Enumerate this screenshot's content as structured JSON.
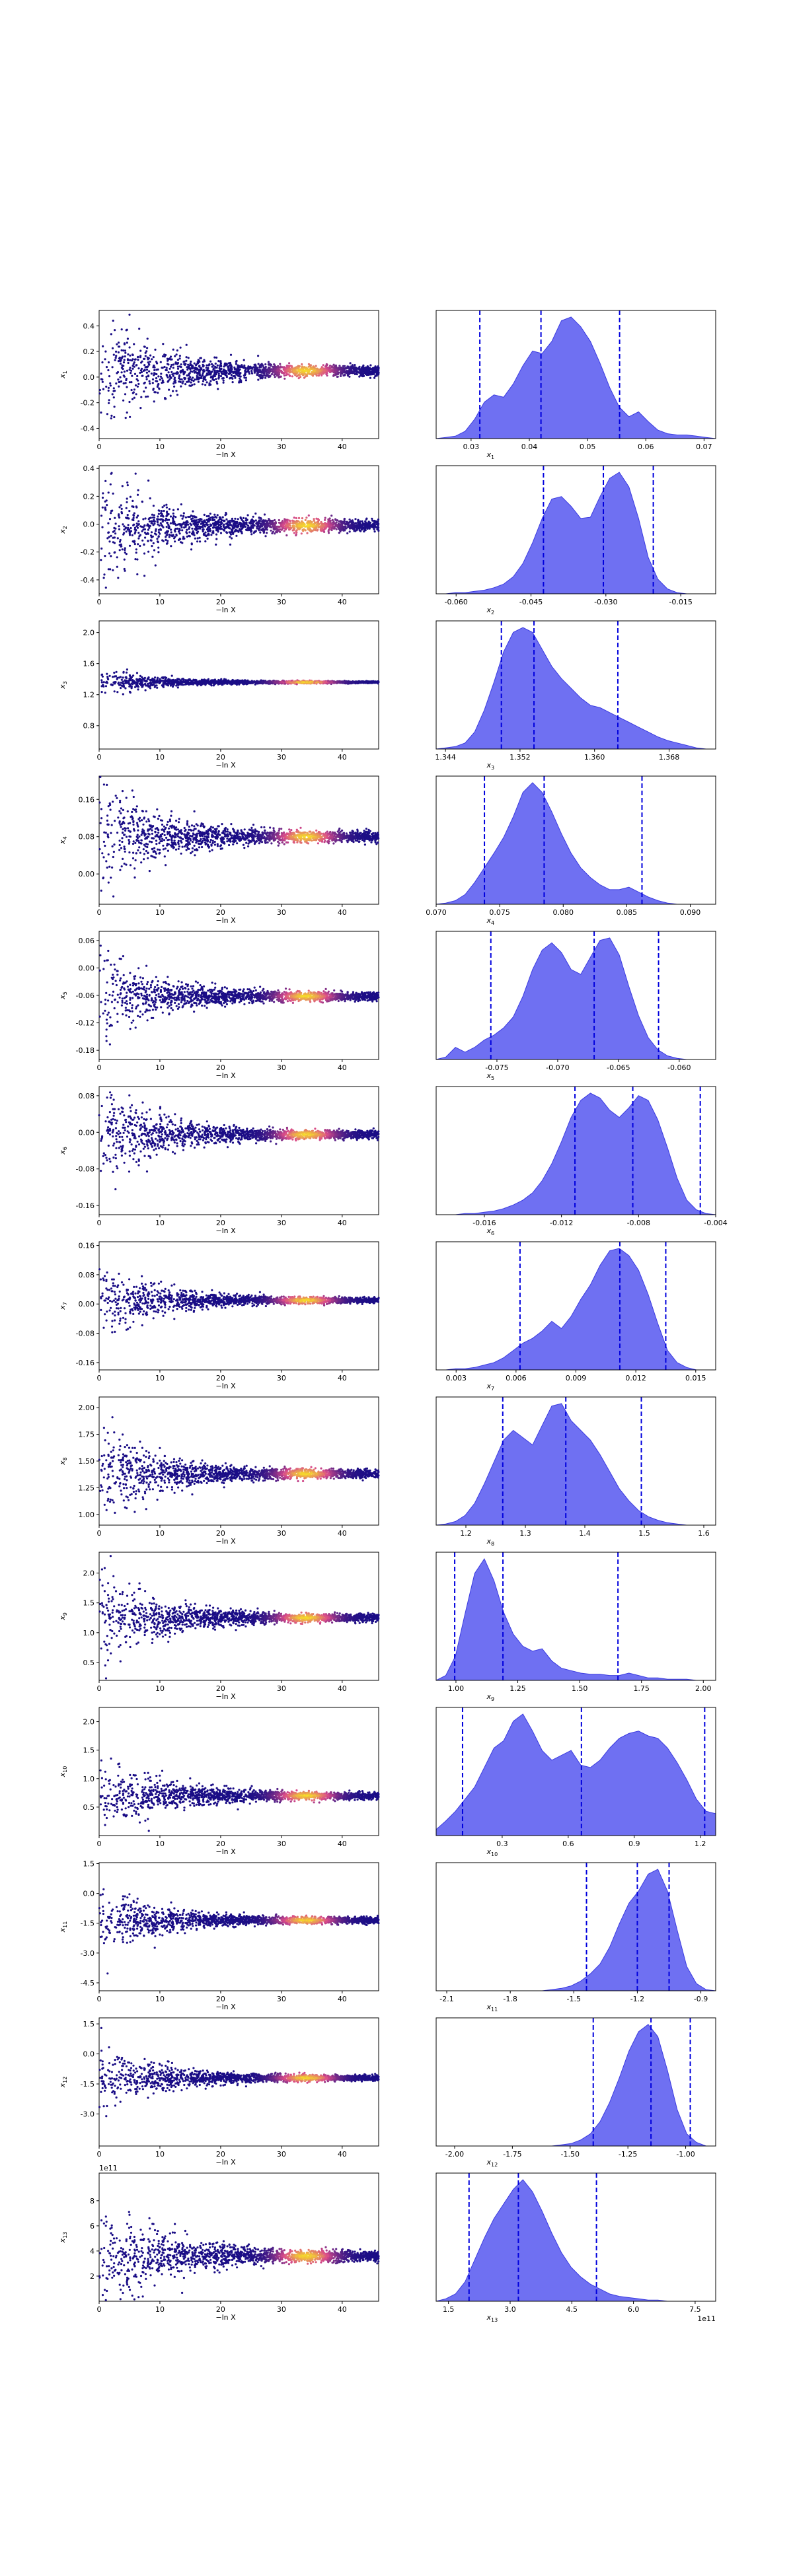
{
  "colors": {
    "background": "#ffffff",
    "axis": "#000000",
    "kde_fill": "#5b5cf0",
    "kde_edge": "#3a3ae0",
    "quantile_line": "#0000dd",
    "scatter_low": "#1a0d86",
    "scatter_mid": "#d94b8a",
    "scatter_high": "#f7e225"
  },
  "icons": {
    "figure": "trace-plot-icon"
  },
  "chart_data": [
    {
      "type": "scatter",
      "param": "x_1",
      "ylabel": "x",
      "sub": "1",
      "xlabel": "−ln X",
      "xlim": [
        0,
        46
      ],
      "xticks": [
        "0",
        "10",
        "20",
        "30",
        "40"
      ],
      "ylim": [
        -0.48,
        0.52
      ],
      "yticks": [
        "-0.4",
        "-0.2",
        "0.0",
        "0.2",
        "0.4"
      ],
      "spread": 0.23,
      "center": 0.05,
      "seed": 11,
      "hist": {
        "xlim": [
          0.024,
          0.072
        ],
        "xticks": [
          "0.03",
          "0.04",
          "0.05",
          "0.06",
          "0.07"
        ],
        "xlabel_var": "x",
        "xlabel_sub": "1",
        "quantiles": [
          0.0315,
          0.042,
          0.0555
        ],
        "density": [
          0.0,
          0.01,
          0.02,
          0.06,
          0.16,
          0.3,
          0.36,
          0.34,
          0.45,
          0.6,
          0.72,
          0.7,
          0.8,
          0.97,
          1.0,
          0.92,
          0.8,
          0.62,
          0.42,
          0.26,
          0.18,
          0.22,
          0.14,
          0.07,
          0.04,
          0.03,
          0.03,
          0.02,
          0.01,
          0.0
        ]
      }
    },
    {
      "type": "scatter",
      "param": "x_2",
      "ylabel": "x",
      "sub": "2",
      "xlabel": "−ln X",
      "xlim": [
        0,
        46
      ],
      "xticks": [
        "0",
        "10",
        "20",
        "30",
        "40"
      ],
      "ylim": [
        -0.5,
        0.42
      ],
      "yticks": [
        "-0.4",
        "-0.2",
        "0.0",
        "0.2",
        "0.4"
      ],
      "spread": 0.22,
      "center": -0.01,
      "seed": 23,
      "hist": {
        "xlim": [
          -0.064,
          -0.008
        ],
        "xticks": [
          "-0.060",
          "-0.045",
          "-0.030",
          "-0.015"
        ],
        "xlabel_var": "x",
        "xlabel_sub": "2",
        "quantiles": [
          -0.0425,
          -0.0305,
          -0.0205
        ],
        "density": [
          0.0,
          0.0,
          0.01,
          0.01,
          0.02,
          0.03,
          0.05,
          0.08,
          0.14,
          0.25,
          0.42,
          0.62,
          0.78,
          0.8,
          0.72,
          0.62,
          0.63,
          0.8,
          0.95,
          1.0,
          0.88,
          0.62,
          0.3,
          0.12,
          0.04,
          0.01,
          0.0,
          0.0,
          0.0,
          0.0
        ]
      }
    },
    {
      "type": "scatter",
      "param": "x_3",
      "ylabel": "x",
      "sub": "3",
      "xlabel": "−ln X",
      "xlim": [
        0,
        46
      ],
      "xticks": [
        "0",
        "10",
        "20",
        "30",
        "40"
      ],
      "ylim": [
        0.5,
        2.15
      ],
      "yticks": [
        "0.8",
        "1.2",
        "1.6",
        "2.0"
      ],
      "spread": 0.08,
      "center": 1.36,
      "seed": 37,
      "hist": {
        "xlim": [
          1.343,
          1.373
        ],
        "xticks": [
          "1.344",
          "1.352",
          "1.360",
          "1.368"
        ],
        "xlabel_var": "x",
        "xlabel_sub": "3",
        "quantiles": [
          1.35,
          1.3535,
          1.3625
        ],
        "density": [
          0.0,
          0.01,
          0.02,
          0.05,
          0.14,
          0.32,
          0.55,
          0.8,
          0.96,
          1.0,
          0.96,
          0.82,
          0.68,
          0.58,
          0.5,
          0.42,
          0.36,
          0.34,
          0.3,
          0.26,
          0.22,
          0.18,
          0.14,
          0.1,
          0.07,
          0.05,
          0.03,
          0.01,
          0.0,
          0.0
        ]
      }
    },
    {
      "type": "scatter",
      "param": "x_4",
      "ylabel": "x",
      "sub": "4",
      "xlabel": "−ln X",
      "xlim": [
        0,
        46
      ],
      "xticks": [
        "0",
        "10",
        "20",
        "30",
        "40"
      ],
      "ylim": [
        -0.065,
        0.21
      ],
      "yticks": [
        "0.00",
        "0.08",
        "0.16"
      ],
      "spread": 0.06,
      "center": 0.08,
      "seed": 41,
      "hist": {
        "xlim": [
          0.07,
          0.092
        ],
        "xticks": [
          "0.070",
          "0.075",
          "0.080",
          "0.085",
          "0.090"
        ],
        "xlabel_var": "x",
        "xlabel_sub": "4",
        "quantiles": [
          0.0738,
          0.0785,
          0.0862
        ],
        "density": [
          0.0,
          0.01,
          0.03,
          0.08,
          0.18,
          0.3,
          0.42,
          0.55,
          0.72,
          0.92,
          1.0,
          0.92,
          0.76,
          0.58,
          0.42,
          0.3,
          0.22,
          0.16,
          0.12,
          0.12,
          0.14,
          0.1,
          0.06,
          0.03,
          0.01,
          0.0,
          0.0,
          0.0,
          0.0,
          0.0
        ]
      }
    },
    {
      "type": "scatter",
      "param": "x_5",
      "ylabel": "x",
      "sub": "5",
      "xlabel": "−ln X",
      "xlim": [
        0,
        46
      ],
      "xticks": [
        "0",
        "10",
        "20",
        "30",
        "40"
      ],
      "ylim": [
        -0.2,
        0.08
      ],
      "yticks": [
        "-0.18",
        "-0.12",
        "-0.06",
        "0.00",
        "0.06"
      ],
      "spread": 0.05,
      "center": -0.062,
      "seed": 53,
      "hist": {
        "xlim": [
          -0.08,
          -0.057
        ],
        "xticks": [
          "-0.075",
          "-0.070",
          "-0.065",
          "-0.060"
        ],
        "xlabel_var": "x",
        "xlabel_sub": "5",
        "quantiles": [
          -0.0755,
          -0.067,
          -0.0617
        ],
        "density": [
          0.0,
          0.02,
          0.1,
          0.06,
          0.1,
          0.16,
          0.2,
          0.26,
          0.35,
          0.52,
          0.74,
          0.9,
          0.96,
          0.88,
          0.74,
          0.7,
          0.84,
          0.98,
          1.0,
          0.86,
          0.6,
          0.36,
          0.18,
          0.08,
          0.03,
          0.01,
          0.0,
          0.0,
          0.0,
          0.0
        ]
      }
    },
    {
      "type": "scatter",
      "param": "x_6",
      "ylabel": "x",
      "sub": "6",
      "xlabel": "−ln X",
      "xlim": [
        0,
        46
      ],
      "xticks": [
        "0",
        "10",
        "20",
        "30",
        "40"
      ],
      "ylim": [
        -0.18,
        0.1
      ],
      "yticks": [
        "-0.16",
        "-0.08",
        "0.00",
        "0.08"
      ],
      "spread": 0.05,
      "center": -0.005,
      "seed": 67,
      "hist": {
        "xlim": [
          -0.0185,
          -0.004
        ],
        "xticks": [
          "-0.016",
          "-0.012",
          "-0.008",
          "-0.004"
        ],
        "xlabel_var": "x",
        "xlabel_sub": "6",
        "quantiles": [
          -0.0113,
          -0.0083,
          -0.0048
        ],
        "density": [
          0.0,
          0.0,
          0.0,
          0.01,
          0.01,
          0.02,
          0.03,
          0.05,
          0.08,
          0.12,
          0.18,
          0.28,
          0.42,
          0.6,
          0.8,
          0.94,
          1.0,
          0.96,
          0.86,
          0.8,
          0.88,
          0.98,
          0.94,
          0.78,
          0.55,
          0.3,
          0.12,
          0.04,
          0.01,
          0.0
        ]
      }
    },
    {
      "type": "scatter",
      "param": "x_7",
      "ylabel": "x",
      "sub": "7",
      "xlabel": "−ln X",
      "xlim": [
        0,
        46
      ],
      "xticks": [
        "0",
        "10",
        "20",
        "30",
        "40"
      ],
      "ylim": [
        -0.18,
        0.17
      ],
      "yticks": [
        "-0.16",
        "-0.08",
        "0.00",
        "0.08",
        "0.16"
      ],
      "spread": 0.045,
      "center": 0.01,
      "seed": 71,
      "hist": {
        "xlim": [
          0.002,
          0.016
        ],
        "xticks": [
          "0.003",
          "0.006",
          "0.009",
          "0.012",
          "0.015"
        ],
        "xlabel_var": "x",
        "xlabel_sub": "7",
        "quantiles": [
          0.0062,
          0.0112,
          0.0135
        ],
        "density": [
          0.0,
          0.0,
          0.01,
          0.01,
          0.02,
          0.04,
          0.06,
          0.1,
          0.16,
          0.22,
          0.26,
          0.32,
          0.4,
          0.34,
          0.44,
          0.58,
          0.7,
          0.86,
          0.98,
          1.0,
          0.94,
          0.82,
          0.62,
          0.38,
          0.16,
          0.06,
          0.02,
          0.0,
          0.0,
          0.0
        ]
      }
    },
    {
      "type": "scatter",
      "param": "x_8",
      "ylabel": "x",
      "sub": "8",
      "xlabel": "−ln X",
      "xlim": [
        0,
        46
      ],
      "xticks": [
        "0",
        "10",
        "20",
        "30",
        "40"
      ],
      "ylim": [
        0.9,
        2.1
      ],
      "yticks": [
        "1.00",
        "1.25",
        "1.50",
        "1.75",
        "2.00"
      ],
      "spread": 0.22,
      "center": 1.38,
      "seed": 83,
      "hist": {
        "xlim": [
          1.15,
          1.62
        ],
        "xticks": [
          "1.2",
          "1.3",
          "1.4",
          "1.5",
          "1.6"
        ],
        "xlabel_var": "x",
        "xlabel_sub": "8",
        "quantiles": [
          1.262,
          1.368,
          1.495
        ],
        "density": [
          0.0,
          0.01,
          0.03,
          0.08,
          0.18,
          0.34,
          0.52,
          0.7,
          0.78,
          0.72,
          0.66,
          0.82,
          0.98,
          1.0,
          0.86,
          0.78,
          0.7,
          0.58,
          0.44,
          0.3,
          0.2,
          0.12,
          0.07,
          0.04,
          0.02,
          0.01,
          0.0,
          0.0,
          0.0,
          0.0
        ]
      }
    },
    {
      "type": "scatter",
      "param": "x_9",
      "ylabel": "x",
      "sub": "9",
      "xlabel": "−ln X",
      "xlim": [
        0,
        46
      ],
      "xticks": [
        "0",
        "10",
        "20",
        "30",
        "40"
      ],
      "ylim": [
        0.2,
        2.35
      ],
      "yticks": [
        "0.5",
        "1.0",
        "1.5",
        "2.0"
      ],
      "spread": 0.38,
      "center": 1.25,
      "seed": 97,
      "hist": {
        "xlim": [
          0.92,
          2.05
        ],
        "xticks": [
          "1.00",
          "1.25",
          "1.50",
          "1.75",
          "2.00"
        ],
        "xlabel_var": "x",
        "xlabel_sub": "9",
        "quantiles": [
          0.995,
          1.19,
          1.655
        ],
        "density": [
          0.0,
          0.04,
          0.2,
          0.55,
          0.88,
          1.0,
          0.82,
          0.56,
          0.38,
          0.28,
          0.24,
          0.26,
          0.16,
          0.1,
          0.08,
          0.06,
          0.05,
          0.05,
          0.04,
          0.04,
          0.06,
          0.04,
          0.02,
          0.02,
          0.01,
          0.01,
          0.01,
          0.0,
          0.0,
          0.0
        ]
      }
    },
    {
      "type": "scatter",
      "param": "x_10",
      "ylabel": "x",
      "sub": "10",
      "xlabel": "−ln X",
      "xlim": [
        0,
        46
      ],
      "xticks": [
        "0",
        "10",
        "20",
        "30",
        "40"
      ],
      "ylim": [
        0.0,
        2.25
      ],
      "yticks": [
        "0.5",
        "1.0",
        "1.5",
        "2.0"
      ],
      "spread": 0.35,
      "center": 0.7,
      "seed": 101,
      "hist": {
        "xlim": [
          0.0,
          1.27
        ],
        "xticks": [
          "0.3",
          "0.6",
          "0.9",
          "1.2"
        ],
        "xlabel_var": "x",
        "xlabel_sub": "10",
        "quantiles": [
          0.12,
          0.66,
          1.22
        ],
        "density": [
          0.05,
          0.12,
          0.2,
          0.3,
          0.4,
          0.56,
          0.72,
          0.78,
          0.94,
          1.0,
          0.86,
          0.7,
          0.62,
          0.66,
          0.7,
          0.58,
          0.56,
          0.62,
          0.72,
          0.8,
          0.84,
          0.86,
          0.82,
          0.8,
          0.72,
          0.6,
          0.46,
          0.3,
          0.2,
          0.18
        ]
      }
    },
    {
      "type": "scatter",
      "param": "x_11",
      "ylabel": "x",
      "sub": "11",
      "xlabel": "−ln X",
      "xlim": [
        0,
        46
      ],
      "xticks": [
        "0",
        "10",
        "20",
        "30",
        "40"
      ],
      "ylim": [
        -4.9,
        1.55
      ],
      "yticks": [
        "-4.5",
        "-3.0",
        "-1.5",
        "0.0",
        "1.5"
      ],
      "spread": 0.9,
      "center": -1.35,
      "seed": 113,
      "hist": {
        "xlim": [
          -2.15,
          -0.83
        ],
        "xticks": [
          "-2.1",
          "-1.8",
          "-1.5",
          "-1.2",
          "-0.9"
        ],
        "xlabel_var": "x",
        "xlabel_sub": "11",
        "quantiles": [
          -1.44,
          -1.2,
          -1.05
        ],
        "density": [
          0.0,
          0.0,
          0.0,
          0.0,
          0.0,
          0.0,
          0.0,
          0.0,
          0.0,
          0.0,
          0.0,
          0.0,
          0.01,
          0.02,
          0.04,
          0.08,
          0.14,
          0.22,
          0.36,
          0.55,
          0.72,
          0.82,
          0.96,
          1.0,
          0.82,
          0.5,
          0.2,
          0.06,
          0.01,
          0.0
        ]
      }
    },
    {
      "type": "scatter",
      "param": "x_12",
      "ylabel": "x",
      "sub": "12",
      "xlabel": "−ln X",
      "xlim": [
        0,
        46
      ],
      "xticks": [
        "0",
        "10",
        "20",
        "30",
        "40"
      ],
      "ylim": [
        -4.6,
        1.8
      ],
      "yticks": [
        "-3.0",
        "-1.5",
        "0.0",
        "1.5"
      ],
      "spread": 0.8,
      "center": -1.2,
      "seed": 127,
      "hist": {
        "xlim": [
          -2.08,
          -0.87
        ],
        "xticks": [
          "-2.00",
          "-1.75",
          "-1.50",
          "-1.25",
          "-1.00"
        ],
        "xlabel_var": "x",
        "xlabel_sub": "12",
        "quantiles": [
          -1.4,
          -1.15,
          -0.98
        ],
        "density": [
          0.0,
          0.0,
          0.0,
          0.0,
          0.0,
          0.0,
          0.0,
          0.0,
          0.0,
          0.0,
          0.0,
          0.0,
          0.0,
          0.01,
          0.02,
          0.05,
          0.1,
          0.2,
          0.36,
          0.56,
          0.78,
          0.94,
          1.0,
          0.9,
          0.62,
          0.3,
          0.1,
          0.03,
          0.0,
          0.0
        ]
      }
    },
    {
      "type": "scatter",
      "param": "x_13",
      "ylabel": "x",
      "sub": "13",
      "xlabel": "−ln X",
      "xlim": [
        0,
        46
      ],
      "xticks": [
        "0",
        "10",
        "20",
        "30",
        "40"
      ],
      "ylim": [
        0.0,
        10.2
      ],
      "yticks": [
        "2",
        "4",
        "6",
        "8"
      ],
      "spread": 2.4,
      "center": 3.6,
      "seed": 139,
      "offset_text": "1e11",
      "hist": {
        "xlim": [
          1.2,
          8.0
        ],
        "xticks": [
          "1.5",
          "3.0",
          "4.5",
          "6.0",
          "7.5"
        ],
        "xlabel_var": "x",
        "xlabel_sub": "13",
        "offset_text": "1e11",
        "quantiles": [
          2.0,
          3.2,
          5.1
        ],
        "density": [
          0.0,
          0.02,
          0.06,
          0.16,
          0.34,
          0.52,
          0.68,
          0.8,
          0.92,
          1.0,
          0.9,
          0.74,
          0.56,
          0.4,
          0.28,
          0.2,
          0.14,
          0.1,
          0.06,
          0.04,
          0.03,
          0.02,
          0.01,
          0.01,
          0.0,
          0.0,
          0.0,
          0.0,
          0.0,
          0.0
        ]
      }
    }
  ]
}
